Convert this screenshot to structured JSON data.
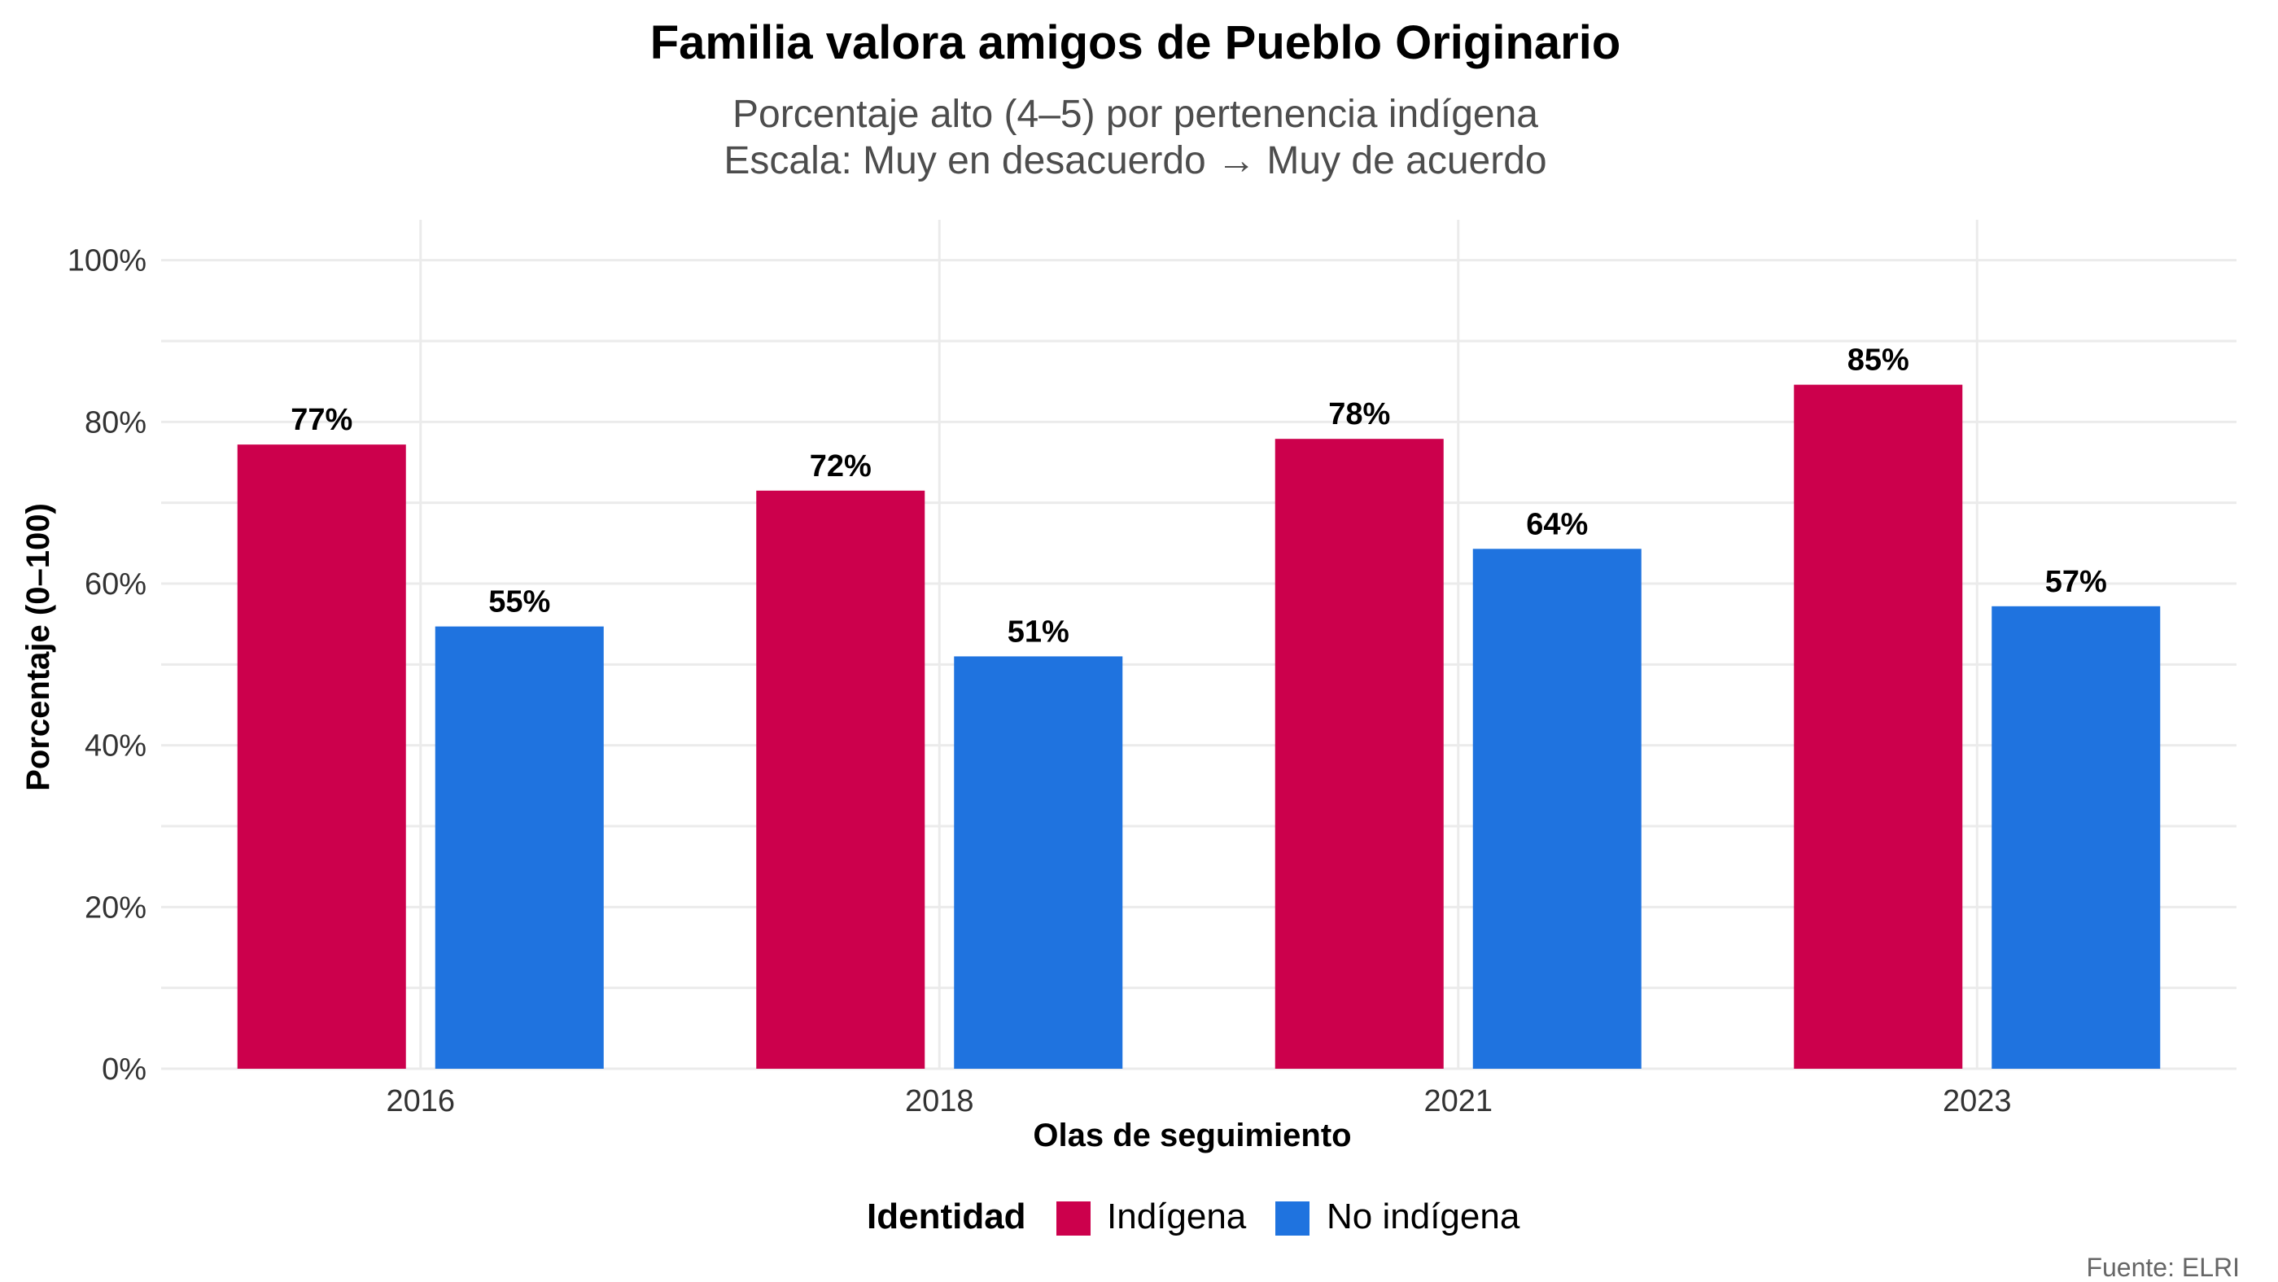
{
  "chart_data": {
    "type": "bar",
    "title": "Familia valora amigos de Pueblo Originario",
    "subtitle_lines": [
      "Porcentaje alto (4–5) por pertenencia indígena",
      "Escala: Muy en desacuerdo → Muy de acuerdo"
    ],
    "xlabel": "Olas de seguimiento",
    "ylabel": "Porcentaje (0–100)",
    "categories": [
      "2016",
      "2018",
      "2021",
      "2023"
    ],
    "series": [
      {
        "name": "Indígena",
        "color": "#CC004C",
        "values": [
          77.2,
          71.5,
          77.9,
          84.6
        ],
        "labels": [
          "77%",
          "72%",
          "78%",
          "85%"
        ]
      },
      {
        "name": "No indígena",
        "color": "#1F73DF",
        "values": [
          54.7,
          51.0,
          64.3,
          57.2
        ],
        "labels": [
          "55%",
          "51%",
          "64%",
          "57%"
        ]
      }
    ],
    "ylim": [
      0,
      105
    ],
    "yticks": [
      0,
      20,
      40,
      60,
      80,
      100
    ],
    "ytick_labels": [
      "0%",
      "20%",
      "40%",
      "60%",
      "80%",
      "100%"
    ],
    "grid": true,
    "legend": {
      "title": "Identidad",
      "position": "bottom"
    },
    "caption": "Fuente: ELRI"
  }
}
